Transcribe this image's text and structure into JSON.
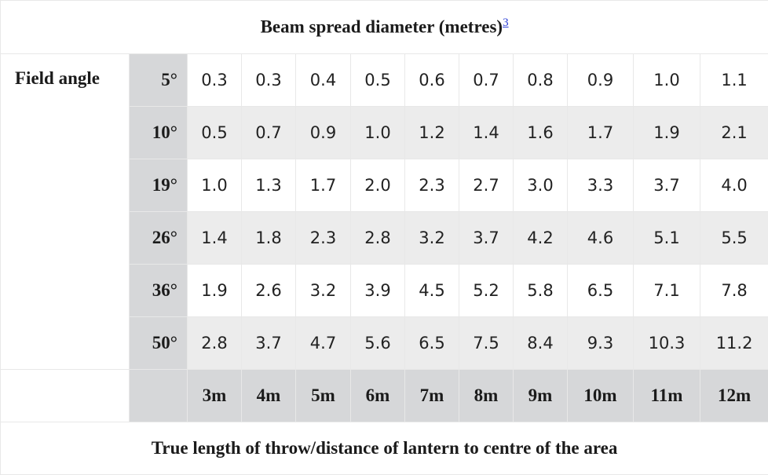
{
  "table": {
    "title": "Beam spread diameter (metres)",
    "footnote_ref": "3",
    "row_header_label": "Field angle",
    "angles": [
      "5°",
      "10°",
      "19°",
      "26°",
      "36°",
      "50°"
    ],
    "rows": [
      [
        "0.3",
        "0.3",
        "0.4",
        "0.5",
        "0.6",
        "0.7",
        "0.8",
        "0.9",
        "1.0",
        "1.1"
      ],
      [
        "0.5",
        "0.7",
        "0.9",
        "1.0",
        "1.2",
        "1.4",
        "1.6",
        "1.7",
        "1.9",
        "2.1"
      ],
      [
        "1.0",
        "1.3",
        "1.7",
        "2.0",
        "2.3",
        "2.7",
        "3.0",
        "3.3",
        "3.7",
        "4.0"
      ],
      [
        "1.4",
        "1.8",
        "2.3",
        "2.8",
        "3.2",
        "3.7",
        "4.2",
        "4.6",
        "5.1",
        "5.5"
      ],
      [
        "1.9",
        "2.6",
        "3.2",
        "3.9",
        "4.5",
        "5.2",
        "5.8",
        "6.5",
        "7.1",
        "7.8"
      ],
      [
        "2.8",
        "3.7",
        "4.7",
        "5.6",
        "6.5",
        "7.5",
        "8.4",
        "9.3",
        "10.3",
        "11.2"
      ]
    ],
    "distances": [
      "3m",
      "4m",
      "5m",
      "6m",
      "7m",
      "8m",
      "9m",
      "10m",
      "11m",
      "12m"
    ],
    "footer": "True length of throw/distance of lantern to centre of the area"
  },
  "colors": {
    "header_gray": "#d6d7d9",
    "stripe_gray": "#ececec",
    "link_blue": "#2a3dd6"
  }
}
